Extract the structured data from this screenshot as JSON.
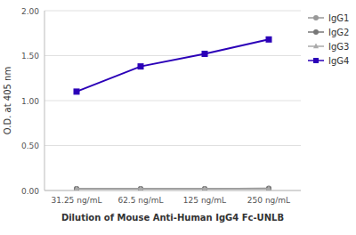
{
  "chart_data": {
    "type": "line",
    "xlabel": "Dilution of Mouse Anti-Human IgG4 Fc-UNLB",
    "ylabel": "O.D. at 405 nm",
    "categories": [
      "31.25 ng/mL",
      "62.5 ng/mL",
      "125 ng/mL",
      "250 ng/mL"
    ],
    "series": [
      {
        "name": "IgG1",
        "color": "#999999",
        "marker": "circle",
        "line_style": "solid",
        "values": [
          0.02,
          0.02,
          0.02,
          0.02
        ]
      },
      {
        "name": "IgG2",
        "color": "#777777",
        "marker": "circle",
        "line_style": "solid",
        "values": [
          0.02,
          0.02,
          0.02,
          0.025
        ]
      },
      {
        "name": "IgG3",
        "color": "#aaaaaa",
        "marker": "triangle",
        "line_style": "solid",
        "values": [
          0.02,
          0.02,
          0.02,
          0.02
        ]
      },
      {
        "name": "IgG4",
        "color": "#2b00b8",
        "marker": "square",
        "line_style": "solid",
        "values": [
          1.1,
          1.38,
          1.52,
          1.68
        ]
      }
    ],
    "ylim": [
      0.0,
      2.0
    ],
    "yticks": [
      {
        "value": 0.0,
        "label": "0.00"
      },
      {
        "value": 0.5,
        "label": "0.50"
      },
      {
        "value": 1.0,
        "label": "1.00"
      },
      {
        "value": 1.5,
        "label": "1.50"
      },
      {
        "value": 2.0,
        "label": "2.00"
      }
    ],
    "grid": true,
    "legend": "right"
  }
}
